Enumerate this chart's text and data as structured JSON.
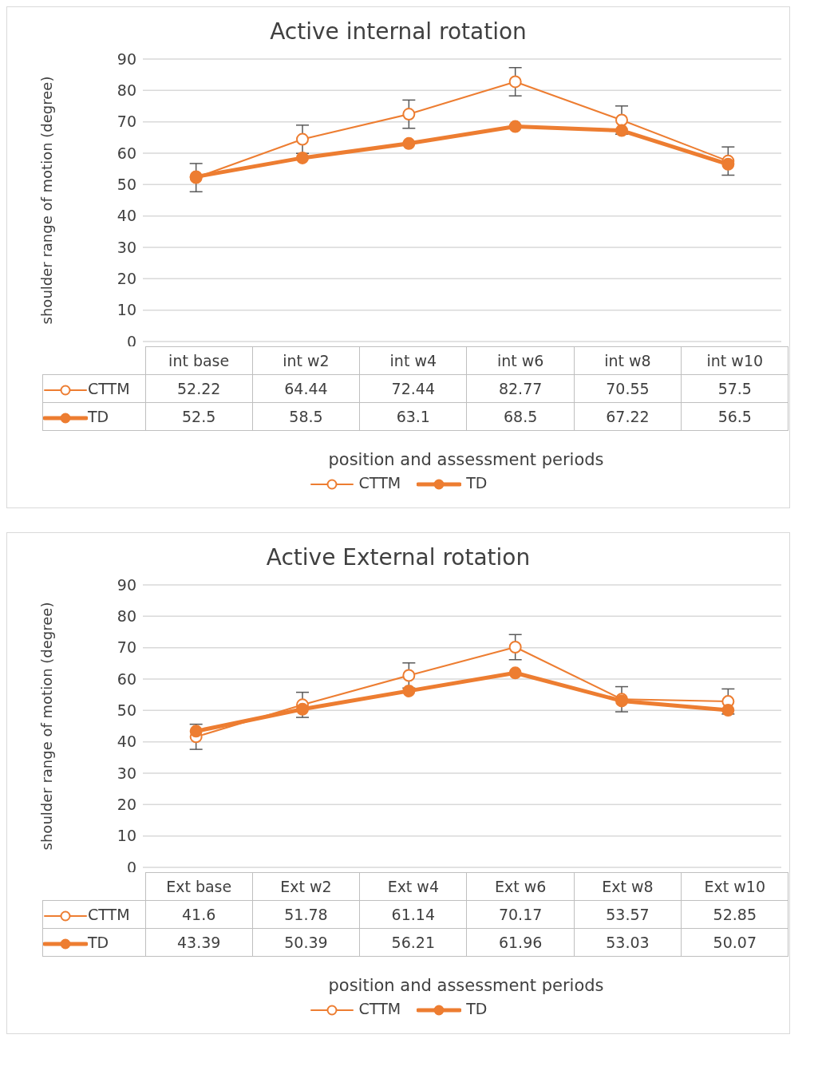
{
  "chart_data": [
    {
      "type": "line",
      "title": "Active  internal  rotation",
      "xlabel": "position and assessment periods",
      "ylabel": "shoulder range of motion (degree)",
      "categories": [
        "int base",
        "int w2",
        "int w4",
        "int w6",
        "int w8",
        "int w10"
      ],
      "series": [
        {
          "name": "CTTM",
          "color": "#ed7d31",
          "values": [
            52.22,
            64.44,
            72.44,
            82.77,
            70.55,
            57.5
          ],
          "errors": [
            4.5,
            4.5,
            4.5,
            4.5,
            4.5,
            4.5
          ]
        },
        {
          "name": "TD",
          "color": "#ed7d31",
          "values": [
            52.5,
            58.5,
            63.1,
            68.5,
            67.22,
            56.5
          ]
        }
      ],
      "ylim": [
        0,
        90
      ],
      "yticks": [
        0,
        10,
        20,
        30,
        40,
        50,
        60,
        70,
        80,
        90
      ],
      "grid": "y",
      "legend": "bottom",
      "marker": "circle",
      "data_labels": true
    },
    {
      "type": "line",
      "title": "Active External rotation",
      "xlabel": "position and assessment periods",
      "ylabel": "shoulder range of motion (degree)",
      "categories": [
        "Ext base",
        "Ext w2",
        "Ext w4",
        "Ext w6",
        "Ext w8",
        "Ext w10"
      ],
      "series": [
        {
          "name": "CTTM",
          "color": "#ed7d31",
          "values": [
            41.6,
            51.78,
            61.14,
            70.17,
            53.57,
            52.85
          ],
          "errors": [
            4,
            4,
            4,
            4,
            4,
            4
          ]
        },
        {
          "name": "TD",
          "color": "#ed7d31",
          "values": [
            43.39,
            50.39,
            56.21,
            61.96,
            53.03,
            50.07
          ]
        }
      ],
      "ylim": [
        0,
        90
      ],
      "yticks": [
        0,
        10,
        20,
        30,
        40,
        50,
        60,
        70,
        80,
        90
      ],
      "grid": "y",
      "legend": "bottom",
      "marker": "circle",
      "data_labels": true
    }
  ]
}
